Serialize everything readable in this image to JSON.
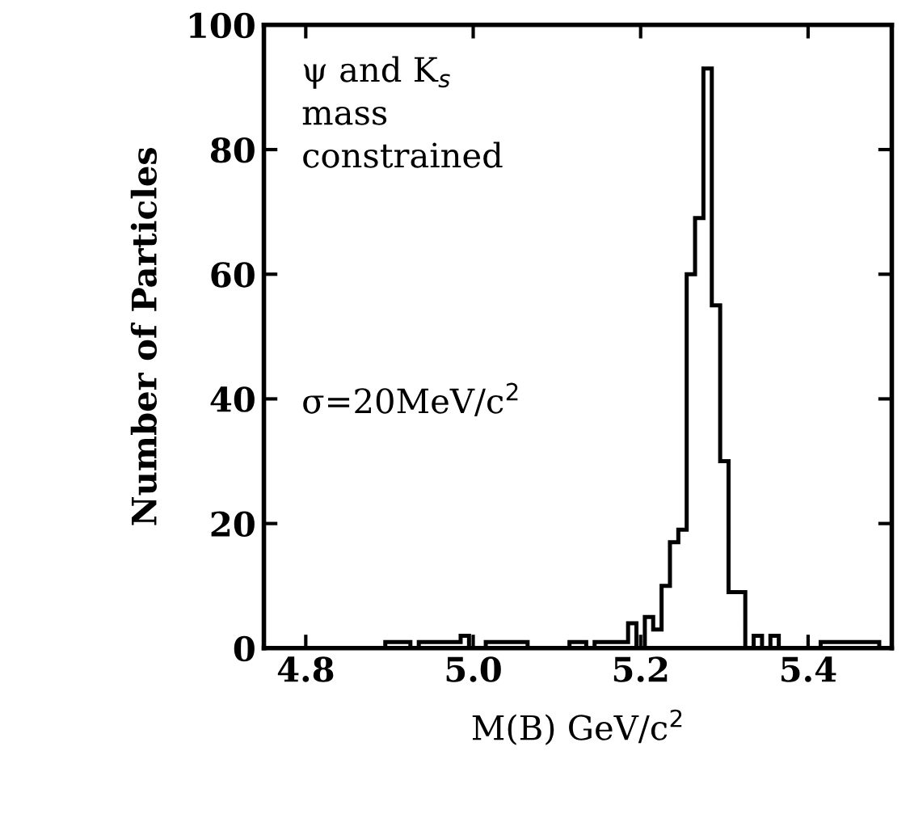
{
  "chart_data": {
    "type": "histogram",
    "xlabel": "M(B) GeV/c$^{2}$",
    "ylabel": "Number of Particles",
    "annotations": [
      "ψ and K$_{s}$\nmass\nconstrained",
      "σ=20MeV/c$^{2}$"
    ],
    "bins": [
      4.785,
      4.795,
      4.805,
      4.815,
      4.825,
      4.835,
      4.845,
      4.855,
      4.865,
      4.875,
      4.885,
      4.895,
      4.905,
      4.915,
      4.925,
      4.935,
      4.945,
      4.955,
      4.965,
      4.975,
      4.985,
      4.995,
      5.005,
      5.015,
      5.025,
      5.035,
      5.045,
      5.055,
      5.065,
      5.075,
      5.085,
      5.095,
      5.105,
      5.115,
      5.125,
      5.135,
      5.145,
      5.155,
      5.165,
      5.175,
      5.185,
      5.195,
      5.205,
      5.215,
      5.225,
      5.235,
      5.245,
      5.255,
      5.265,
      5.275,
      5.285,
      5.295,
      5.305,
      5.315,
      5.325,
      5.335,
      5.345,
      5.355,
      5.365,
      5.375,
      5.385,
      5.395,
      5.405,
      5.415,
      5.425,
      5.435,
      5.445,
      5.455,
      5.465,
      5.475,
      5.485
    ],
    "values": [
      0,
      0,
      0,
      0,
      0,
      0,
      0,
      0,
      0,
      0,
      0,
      1,
      1,
      1,
      0,
      1,
      1,
      1,
      1,
      1,
      2,
      0,
      0,
      1,
      1,
      1,
      1,
      1,
      0,
      0,
      0,
      0,
      0,
      1,
      1,
      0,
      1,
      1,
      1,
      1,
      4,
      0,
      5,
      3,
      10,
      17,
      19,
      60,
      69,
      93,
      55,
      30,
      9,
      9,
      0,
      2,
      0,
      2,
      0,
      0,
      0,
      0,
      0,
      1,
      1,
      1,
      1,
      1,
      1,
      1
    ],
    "color": "#000000",
    "xlim": [
      4.75,
      5.5
    ],
    "ylim": [
      0,
      100
    ],
    "xticks": [
      4.8,
      {
        "value": 5.0,
        "label": "5.0"
      },
      5.2,
      5.4
    ],
    "yticks": [
      0,
      20,
      40,
      60,
      80,
      100
    ],
    "grid": false,
    "legend": false
  }
}
